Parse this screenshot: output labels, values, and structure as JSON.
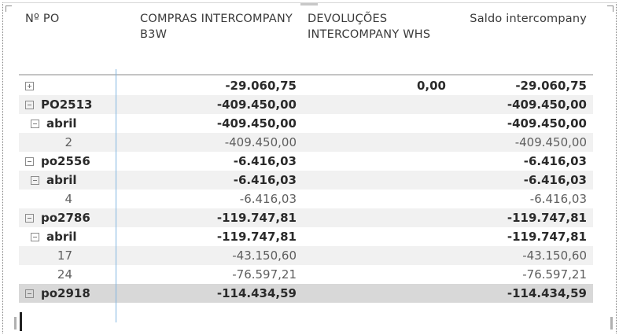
{
  "columns": {
    "po": "Nº PO",
    "compras": "COMPRAS INTERCOMPANY B3W",
    "devolucoes": "DEVOLUÇÕES INTERCOMPANY WHS",
    "saldo": "Saldo intercompany"
  },
  "rows": [
    {
      "label": "",
      "icon": "expand-plus-icon",
      "compras": "-29.060,75",
      "devol": "0,00",
      "saldo": "-29.060,75"
    },
    {
      "label": "PO2513",
      "icon": "collapse-minus-icon",
      "compras": "-409.450,00",
      "devol": "",
      "saldo": "-409.450,00"
    },
    {
      "label": "abril",
      "icon": "collapse-minus-icon",
      "compras": "-409.450,00",
      "devol": "",
      "saldo": "-409.450,00"
    },
    {
      "label": "2",
      "icon": "",
      "compras": "-409.450,00",
      "devol": "",
      "saldo": "-409.450,00"
    },
    {
      "label": "po2556",
      "icon": "collapse-minus-icon",
      "compras": "-6.416,03",
      "devol": "",
      "saldo": "-6.416,03"
    },
    {
      "label": "abril",
      "icon": "collapse-minus-icon",
      "compras": "-6.416,03",
      "devol": "",
      "saldo": "-6.416,03"
    },
    {
      "label": "4",
      "icon": "",
      "compras": "-6.416,03",
      "devol": "",
      "saldo": "-6.416,03"
    },
    {
      "label": "po2786",
      "icon": "collapse-minus-icon",
      "compras": "-119.747,81",
      "devol": "",
      "saldo": "-119.747,81"
    },
    {
      "label": "abril",
      "icon": "collapse-minus-icon",
      "compras": "-119.747,81",
      "devol": "",
      "saldo": "-119.747,81"
    },
    {
      "label": "17",
      "icon": "",
      "compras": "-43.150,60",
      "devol": "",
      "saldo": "-43.150,60"
    },
    {
      "label": "24",
      "icon": "",
      "compras": "-76.597,21",
      "devol": "",
      "saldo": "-76.597,21"
    },
    {
      "label": "po2918",
      "icon": "collapse-minus-icon",
      "compras": "-114.434,59",
      "devol": "",
      "saldo": "-114.434,59"
    }
  ]
}
